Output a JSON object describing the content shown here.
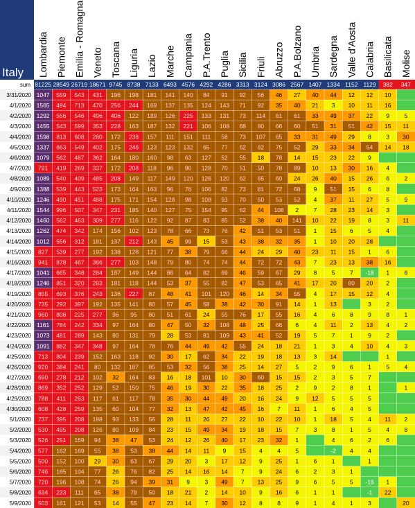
{
  "chart_data": {
    "type": "heatmap",
    "title": "Italy",
    "sum_label": "sum",
    "regions": [
      "Lombardia",
      "Piemonte",
      "Emilia - Romagna",
      "Veneto",
      "Toscana",
      "Liguria",
      "Lazio",
      "Marche",
      "Campania",
      "P.A.Trento",
      "Puglia",
      "Sicilia",
      "Friuli",
      "Abruzzo",
      "P.A.Bolzano",
      "Umbria",
      "Sardegna",
      "Valle d'Aosta",
      "Calabria",
      "Basilicata",
      "Molise"
    ],
    "sums": [
      81225,
      28549,
      26719,
      18671,
      9745,
      8738,
      7133,
      6493,
      4576,
      4292,
      4286,
      3313,
      3124,
      3086,
      2567,
      1407,
      1334,
      1152,
      1129,
      382,
      347
    ],
    "dates": [
      "3/31/2020",
      "4/1/2020",
      "4/2/2020",
      "4/3/2020",
      "4/4/2020",
      "4/5/2020",
      "4/6/2020",
      "4/7/2020",
      "4/8/2020",
      "4/9/2020",
      "4/10/2020",
      "4/11/2020",
      "4/12/2020",
      "4/13/2020",
      "4/14/2020",
      "4/15/2020",
      "4/16/2020",
      "4/17/2020",
      "4/18/2020",
      "4/19/2020",
      "4/20/2020",
      "4/21/2020",
      "4/22/2020",
      "4/23/2020",
      "4/24/2020",
      "4/25/2020",
      "4/26/2020",
      "4/27/2020",
      "4/28/2020",
      "4/29/2020",
      "4/30/2020",
      "5/1/2020",
      "5/2/2020",
      "5/3/2020",
      "5/4/2020",
      "5/5/2020",
      "5/6/2020",
      "5/7/2020",
      "5/8/2020",
      "5/9/2020"
    ],
    "values": [
      [
        1047,
        559,
        543,
        431,
        196,
        198,
        181,
        141,
        140,
        84,
        91,
        92,
        56,
        46,
        27,
        40,
        44,
        12,
        12,
        10,
        null
      ],
      [
        1565,
        494,
        713,
        470,
        256,
        244,
        169,
        137,
        135,
        124,
        143,
        71,
        92,
        35,
        40,
        21,
        3,
        10,
        11,
        16,
        null
      ],
      [
        1292,
        556,
        546,
        496,
        406,
        122,
        189,
        126,
        225,
        133,
        131,
        73,
        114,
        61,
        61,
        33,
        49,
        37,
        22,
        9,
        5
      ],
      [
        1455,
        543,
        599,
        353,
        228,
        163,
        187,
        132,
        221,
        106,
        108,
        68,
        80,
        66,
        60,
        51,
        31,
        51,
        42,
        15,
        11
      ],
      [
        1598,
        813,
        608,
        280,
        172,
        238,
        157,
        111,
        151,
        111,
        58,
        73,
        107,
        65,
        33,
        31,
        49,
        29,
        8,
        3,
        30
      ],
      [
        1337,
        663,
        549,
        402,
        175,
        246,
        123,
        123,
        132,
        65,
        77,
        62,
        62,
        75,
        52,
        29,
        33,
        34,
        54,
        14,
        18
      ],
      [
        1079,
        562,
        487,
        362,
        164,
        180,
        160,
        98,
        63,
        127,
        52,
        55,
        18,
        78,
        14,
        15,
        23,
        22,
        9,
        null,
        null
      ],
      [
        791,
        419,
        269,
        337,
        172,
        208,
        118,
        96,
        90,
        128,
        70,
        51,
        50,
        78,
        89,
        10,
        13,
        30,
        16,
        4,
        null
      ],
      [
        1089,
        540,
        409,
        485,
        208,
        149,
        117,
        149,
        120,
        126,
        120,
        62,
        65,
        60,
        24,
        26,
        40,
        15,
        26,
        6,
        2
      ],
      [
        1388,
        539,
        443,
        523,
        173,
        164,
        163,
        96,
        76,
        106,
        82,
        73,
        81,
        72,
        68,
        9,
        51,
        15,
        6,
        8,
        null
      ],
      [
        1246,
        490,
        451,
        488,
        175,
        171,
        154,
        128,
        98,
        108,
        93,
        70,
        50,
        53,
        52,
        4,
        37,
        11,
        27,
        5,
        9
      ],
      [
        1544,
        996,
        507,
        347,
        231,
        185,
        140,
        127,
        75,
        154,
        95,
        62,
        44,
        108,
        2,
        7,
        28,
        23,
        14,
        3,
        null
      ],
      [
        1460,
        562,
        463,
        309,
        277,
        116,
        122,
        92,
        87,
        83,
        85,
        52,
        38,
        40,
        141,
        10,
        22,
        19,
        8,
        3,
        11
      ],
      [
        1262,
        474,
        342,
        174,
        156,
        102,
        123,
        78,
        66,
        73,
        76,
        42,
        51,
        53,
        51,
        1,
        15,
        6,
        5,
        4,
        null
      ],
      [
        1012,
        556,
        312,
        181,
        137,
        212,
        143,
        45,
        99,
        15,
        53,
        43,
        38,
        32,
        35,
        1,
        10,
        20,
        28,
        null,
        null
      ],
      [
        827,
        539,
        277,
        192,
        138,
        128,
        121,
        77,
        38,
        79,
        66,
        44,
        24,
        29,
        40,
        23,
        11,
        15,
        1,
        6,
        null
      ],
      [
        941,
        878,
        467,
        366,
        277,
        103,
        148,
        79,
        80,
        74,
        74,
        44,
        72,
        72,
        43,
        7,
        23,
        13,
        38,
        16,
        null
      ],
      [
        1041,
        665,
        348,
        284,
        187,
        149,
        144,
        86,
        64,
        82,
        69,
        46,
        59,
        67,
        29,
        8,
        5,
        7,
        -18,
        1,
        6
      ],
      [
        1246,
        851,
        320,
        283,
        181,
        118,
        144,
        53,
        37,
        55,
        82,
        47,
        53,
        65,
        41,
        17,
        20,
        80,
        20,
        2,
        null
      ],
      [
        855,
        693,
        376,
        243,
        136,
        227,
        87,
        48,
        41,
        101,
        120,
        46,
        14,
        34,
        55,
        4,
        17,
        15,
        12,
        4,
        null
      ],
      [
        735,
        292,
        397,
        192,
        135,
        141,
        80,
        57,
        45,
        58,
        38,
        42,
        30,
        91,
        14,
        1,
        13,
        null,
        3,
        2,
        null
      ],
      [
        960,
        808,
        225,
        277,
        96,
        95,
        80,
        51,
        61,
        24,
        55,
        76,
        17,
        55,
        16,
        4,
        6,
        8,
        9,
        8,
        1
      ],
      [
        1161,
        784,
        242,
        334,
        97,
        164,
        80,
        47,
        50,
        32,
        108,
        48,
        25,
        66,
        6,
        4,
        11,
        2,
        13,
        4,
        2
      ],
      [
        1073,
        481,
        289,
        143,
        80,
        131,
        79,
        28,
        53,
        81,
        109,
        43,
        41,
        52,
        19,
        5,
        7,
        1,
        9,
        2,
        null
      ],
      [
        1091,
        882,
        347,
        348,
        97,
        164,
        78,
        76,
        44,
        49,
        42,
        55,
        24,
        18,
        21,
        1,
        3,
        4,
        10,
        4,
        3
      ],
      [
        713,
        804,
        239,
        152,
        163,
        118,
        92,
        30,
        17,
        62,
        34,
        22,
        19,
        18,
        13,
        3,
        14,
        null,
        null,
        1,
        null
      ],
      [
        920,
        384,
        241,
        80,
        132,
        187,
        85,
        53,
        32,
        56,
        38,
        25,
        14,
        27,
        5,
        2,
        9,
        6,
        1,
        5,
        4
      ],
      [
        690,
        278,
        212,
        102,
        32,
        164,
        83,
        16,
        18,
        101,
        10,
        30,
        60,
        15,
        15,
        2,
        3,
        5,
        7,
        null,
        null
      ],
      [
        869,
        352,
        252,
        129,
        52,
        150,
        75,
        46,
        19,
        30,
        22,
        35,
        18,
        25,
        2,
        9,
        2,
        8,
        1,
        null,
        1
      ],
      [
        788,
        411,
        263,
        117,
        61,
        117,
        78,
        35,
        30,
        44,
        49,
        20,
        16,
        24,
        9,
        12,
        5,
        5,
        5,
        null,
        null
      ],
      [
        608,
        428,
        259,
        135,
        60,
        104,
        77,
        32,
        13,
        47,
        42,
        45,
        16,
        7,
        11,
        1,
        6,
        4,
        5,
        null,
        null
      ],
      [
        737,
        395,
        208,
        188,
        93,
        133,
        56,
        28,
        11,
        26,
        27,
        22,
        10,
        22,
        10,
        1,
        18,
        5,
        4,
        11,
        2
      ],
      [
        530,
        495,
        208,
        126,
        80,
        109,
        84,
        23,
        15,
        49,
        34,
        19,
        18,
        15,
        7,
        3,
        8,
        1,
        5,
        4,
        8
      ],
      [
        526,
        251,
        169,
        94,
        38,
        47,
        53,
        24,
        12,
        26,
        40,
        17,
        23,
        32,
        1,
        null,
        4,
        6,
        2,
        6,
        null
      ],
      [
        577,
        162,
        169,
        55,
        38,
        53,
        38,
        44,
        14,
        11,
        9,
        15,
        4,
        4,
        5,
        null,
        -2,
        4,
        4,
        null,
        null
      ],
      [
        500,
        152,
        100,
        29,
        30,
        63,
        67,
        29,
        20,
        3,
        17,
        12,
        9,
        25,
        1,
        6,
        1,
        null,
        1,
        null,
        null
      ],
      [
        746,
        165,
        104,
        77,
        26,
        76,
        82,
        25,
        14,
        16,
        14,
        7,
        9,
        24,
        6,
        2,
        3,
        1,
        null,
        null,
        null
      ],
      [
        720,
        196,
        108,
        74,
        26,
        94,
        39,
        31,
        9,
        3,
        49,
        7,
        13,
        25,
        9,
        6,
        5,
        5,
        -18,
        1,
        null
      ],
      [
        634,
        233,
        111,
        65,
        38,
        78,
        50,
        18,
        21,
        2,
        14,
        10,
        9,
        16,
        6,
        1,
        1,
        null,
        -1,
        22,
        null
      ],
      [
        503,
        161,
        121,
        53,
        14,
        55,
        47,
        23,
        14,
        7,
        30,
        12,
        8,
        8,
        9,
        1,
        4,
        1,
        3,
        null,
        20
      ]
    ]
  }
}
